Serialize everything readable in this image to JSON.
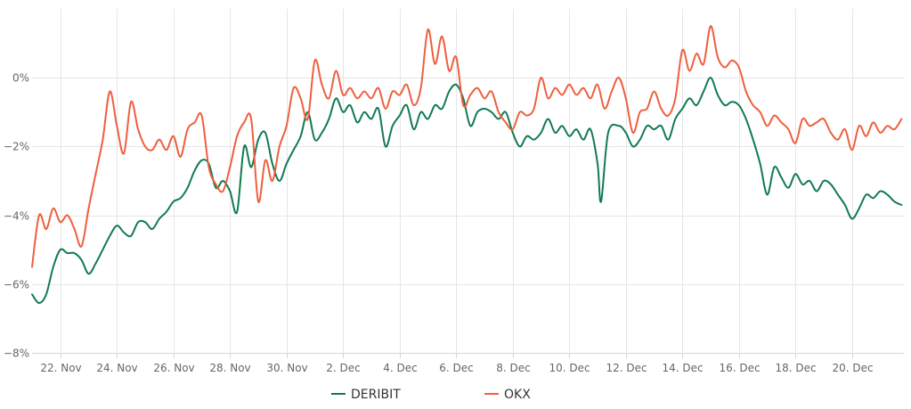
{
  "chart_data": {
    "type": "line",
    "title": "",
    "xlabel": "",
    "ylabel": "",
    "x_range": [
      "2024-11-21T00:00",
      "2024-12-21T20:00"
    ],
    "y_range": [
      -8,
      2
    ],
    "y_ticks": [
      -8,
      -6,
      -4,
      -2,
      0
    ],
    "y_tick_labels": [
      "−8%",
      "−6%",
      "−4%",
      "−2%",
      "0%"
    ],
    "x_ticks": [
      "2024-11-22",
      "2024-11-24",
      "2024-11-26",
      "2024-11-28",
      "2024-11-30",
      "2024-12-02",
      "2024-12-04",
      "2024-12-06",
      "2024-12-08",
      "2024-12-10",
      "2024-12-12",
      "2024-12-14",
      "2024-12-16",
      "2024-12-18",
      "2024-12-20"
    ],
    "x_tick_labels": [
      "22. Nov",
      "24. Nov",
      "26. Nov",
      "28. Nov",
      "30. Nov",
      "2. Dec",
      "4. Dec",
      "6. Dec",
      "8. Dec",
      "10. Dec",
      "12. Dec",
      "14. Dec",
      "16. Dec",
      "18. Dec",
      "20. Dec"
    ],
    "grid": true,
    "legend_position": "bottom-center",
    "series": [
      {
        "name": "DERIBIT",
        "color": "#117a52",
        "points": [
          [
            "2024-11-21T00:00",
            -6.3
          ],
          [
            "2024-11-21T06:00",
            -6.55
          ],
          [
            "2024-11-21T12:00",
            -6.3
          ],
          [
            "2024-11-21T18:00",
            -5.5
          ],
          [
            "2024-11-22T00:00",
            -5.0
          ],
          [
            "2024-11-22T06:00",
            -5.1
          ],
          [
            "2024-11-22T12:00",
            -5.1
          ],
          [
            "2024-11-22T18:00",
            -5.3
          ],
          [
            "2024-11-23T00:00",
            -5.7
          ],
          [
            "2024-11-23T06:00",
            -5.4
          ],
          [
            "2024-11-23T12:00",
            -5.0
          ],
          [
            "2024-11-23T18:00",
            -4.6
          ],
          [
            "2024-11-24T00:00",
            -4.3
          ],
          [
            "2024-11-24T06:00",
            -4.5
          ],
          [
            "2024-11-24T12:00",
            -4.6
          ],
          [
            "2024-11-24T18:00",
            -4.2
          ],
          [
            "2024-11-25T00:00",
            -4.2
          ],
          [
            "2024-11-25T06:00",
            -4.4
          ],
          [
            "2024-11-25T12:00",
            -4.1
          ],
          [
            "2024-11-25T18:00",
            -3.9
          ],
          [
            "2024-11-26T00:00",
            -3.6
          ],
          [
            "2024-11-26T06:00",
            -3.5
          ],
          [
            "2024-11-26T12:00",
            -3.2
          ],
          [
            "2024-11-26T18:00",
            -2.7
          ],
          [
            "2024-11-27T00:00",
            -2.4
          ],
          [
            "2024-11-27T06:00",
            -2.5
          ],
          [
            "2024-11-27T12:00",
            -3.2
          ],
          [
            "2024-11-27T18:00",
            -3.0
          ],
          [
            "2024-11-28T00:00",
            -3.3
          ],
          [
            "2024-11-28T06:00",
            -3.9
          ],
          [
            "2024-11-28T12:00",
            -2.0
          ],
          [
            "2024-11-28T18:00",
            -2.6
          ],
          [
            "2024-11-29T00:00",
            -1.8
          ],
          [
            "2024-11-29T06:00",
            -1.6
          ],
          [
            "2024-11-29T12:00",
            -2.5
          ],
          [
            "2024-11-29T18:00",
            -3.0
          ],
          [
            "2024-11-30T00:00",
            -2.5
          ],
          [
            "2024-11-30T06:00",
            -2.1
          ],
          [
            "2024-11-30T12:00",
            -1.7
          ],
          [
            "2024-11-30T18:00",
            -1.0
          ],
          [
            "2024-12-01T00:00",
            -1.8
          ],
          [
            "2024-12-01T06:00",
            -1.6
          ],
          [
            "2024-12-01T12:00",
            -1.2
          ],
          [
            "2024-12-01T18:00",
            -0.6
          ],
          [
            "2024-12-02T00:00",
            -1.0
          ],
          [
            "2024-12-02T06:00",
            -0.8
          ],
          [
            "2024-12-02T12:00",
            -1.3
          ],
          [
            "2024-12-02T18:00",
            -1.0
          ],
          [
            "2024-12-03T00:00",
            -1.2
          ],
          [
            "2024-12-03T06:00",
            -0.9
          ],
          [
            "2024-12-03T12:00",
            -2.0
          ],
          [
            "2024-12-03T18:00",
            -1.4
          ],
          [
            "2024-12-04T00:00",
            -1.1
          ],
          [
            "2024-12-04T06:00",
            -0.8
          ],
          [
            "2024-12-04T12:00",
            -1.5
          ],
          [
            "2024-12-04T18:00",
            -1.0
          ],
          [
            "2024-12-05T00:00",
            -1.2
          ],
          [
            "2024-12-05T06:00",
            -0.8
          ],
          [
            "2024-12-05T12:00",
            -0.9
          ],
          [
            "2024-12-05T18:00",
            -0.4
          ],
          [
            "2024-12-06T00:00",
            -0.2
          ],
          [
            "2024-12-06T06:00",
            -0.6
          ],
          [
            "2024-12-06T12:00",
            -1.4
          ],
          [
            "2024-12-06T18:00",
            -1.0
          ],
          [
            "2024-12-07T00:00",
            -0.9
          ],
          [
            "2024-12-07T06:00",
            -1.0
          ],
          [
            "2024-12-07T12:00",
            -1.2
          ],
          [
            "2024-12-07T18:00",
            -1.0
          ],
          [
            "2024-12-08T00:00",
            -1.6
          ],
          [
            "2024-12-08T06:00",
            -2.0
          ],
          [
            "2024-12-08T12:00",
            -1.7
          ],
          [
            "2024-12-08T18:00",
            -1.8
          ],
          [
            "2024-12-09T00:00",
            -1.6
          ],
          [
            "2024-12-09T06:00",
            -1.2
          ],
          [
            "2024-12-09T12:00",
            -1.6
          ],
          [
            "2024-12-09T18:00",
            -1.4
          ],
          [
            "2024-12-10T00:00",
            -1.7
          ],
          [
            "2024-12-10T06:00",
            -1.5
          ],
          [
            "2024-12-10T12:00",
            -1.8
          ],
          [
            "2024-12-10T18:00",
            -1.5
          ],
          [
            "2024-12-11T00:00",
            -2.5
          ],
          [
            "2024-12-11T03:00",
            -3.6
          ],
          [
            "2024-12-11T09:00",
            -1.6
          ],
          [
            "2024-12-11T18:00",
            -1.4
          ],
          [
            "2024-12-12T00:00",
            -1.6
          ],
          [
            "2024-12-12T06:00",
            -2.0
          ],
          [
            "2024-12-12T12:00",
            -1.8
          ],
          [
            "2024-12-12T18:00",
            -1.4
          ],
          [
            "2024-12-13T00:00",
            -1.5
          ],
          [
            "2024-12-13T06:00",
            -1.4
          ],
          [
            "2024-12-13T12:00",
            -1.8
          ],
          [
            "2024-12-13T18:00",
            -1.2
          ],
          [
            "2024-12-14T00:00",
            -0.9
          ],
          [
            "2024-12-14T06:00",
            -0.6
          ],
          [
            "2024-12-14T12:00",
            -0.8
          ],
          [
            "2024-12-14T18:00",
            -0.4
          ],
          [
            "2024-12-15T00:00",
            0.0
          ],
          [
            "2024-12-15T06:00",
            -0.5
          ],
          [
            "2024-12-15T12:00",
            -0.8
          ],
          [
            "2024-12-15T18:00",
            -0.7
          ],
          [
            "2024-12-16T00:00",
            -0.8
          ],
          [
            "2024-12-16T06:00",
            -1.2
          ],
          [
            "2024-12-16T12:00",
            -1.8
          ],
          [
            "2024-12-16T18:00",
            -2.5
          ],
          [
            "2024-12-17T00:00",
            -3.4
          ],
          [
            "2024-12-17T06:00",
            -2.6
          ],
          [
            "2024-12-17T12:00",
            -2.9
          ],
          [
            "2024-12-17T18:00",
            -3.2
          ],
          [
            "2024-12-18T00:00",
            -2.8
          ],
          [
            "2024-12-18T06:00",
            -3.1
          ],
          [
            "2024-12-18T12:00",
            -3.0
          ],
          [
            "2024-12-18T18:00",
            -3.3
          ],
          [
            "2024-12-19T00:00",
            -3.0
          ],
          [
            "2024-12-19T06:00",
            -3.1
          ],
          [
            "2024-12-19T12:00",
            -3.4
          ],
          [
            "2024-12-19T18:00",
            -3.7
          ],
          [
            "2024-12-20T00:00",
            -4.1
          ],
          [
            "2024-12-20T06:00",
            -3.8
          ],
          [
            "2024-12-20T12:00",
            -3.4
          ],
          [
            "2024-12-20T18:00",
            -3.5
          ],
          [
            "2024-12-21T00:00",
            -3.3
          ],
          [
            "2024-12-21T06:00",
            -3.4
          ],
          [
            "2024-12-21T12:00",
            -3.6
          ],
          [
            "2024-12-21T18:00",
            -3.7
          ]
        ]
      },
      {
        "name": "OKX",
        "color": "#ee5f3f",
        "points": [
          [
            "2024-11-21T00:00",
            -5.5
          ],
          [
            "2024-11-21T06:00",
            -4.0
          ],
          [
            "2024-11-21T12:00",
            -4.4
          ],
          [
            "2024-11-21T18:00",
            -3.8
          ],
          [
            "2024-11-22T00:00",
            -4.2
          ],
          [
            "2024-11-22T06:00",
            -4.0
          ],
          [
            "2024-11-22T12:00",
            -4.4
          ],
          [
            "2024-11-22T18:00",
            -4.9
          ],
          [
            "2024-11-23T00:00",
            -3.8
          ],
          [
            "2024-11-23T06:00",
            -2.8
          ],
          [
            "2024-11-23T12:00",
            -1.8
          ],
          [
            "2024-11-23T18:00",
            -0.4
          ],
          [
            "2024-11-24T00:00",
            -1.4
          ],
          [
            "2024-11-24T06:00",
            -2.2
          ],
          [
            "2024-11-24T12:00",
            -0.7
          ],
          [
            "2024-11-24T18:00",
            -1.5
          ],
          [
            "2024-11-25T00:00",
            -2.0
          ],
          [
            "2024-11-25T06:00",
            -2.1
          ],
          [
            "2024-11-25T12:00",
            -1.8
          ],
          [
            "2024-11-25T18:00",
            -2.1
          ],
          [
            "2024-11-26T00:00",
            -1.7
          ],
          [
            "2024-11-26T06:00",
            -2.3
          ],
          [
            "2024-11-26T12:00",
            -1.5
          ],
          [
            "2024-11-26T18:00",
            -1.3
          ],
          [
            "2024-11-27T00:00",
            -1.1
          ],
          [
            "2024-11-27T06:00",
            -2.6
          ],
          [
            "2024-11-27T12:00",
            -3.1
          ],
          [
            "2024-11-27T18:00",
            -3.3
          ],
          [
            "2024-11-28T00:00",
            -2.6
          ],
          [
            "2024-11-28T06:00",
            -1.7
          ],
          [
            "2024-11-28T12:00",
            -1.3
          ],
          [
            "2024-11-28T18:00",
            -1.2
          ],
          [
            "2024-11-29T00:00",
            -3.6
          ],
          [
            "2024-11-29T06:00",
            -2.4
          ],
          [
            "2024-11-29T12:00",
            -3.0
          ],
          [
            "2024-11-29T18:00",
            -2.0
          ],
          [
            "2024-11-30T00:00",
            -1.4
          ],
          [
            "2024-11-30T06:00",
            -0.3
          ],
          [
            "2024-11-30T12:00",
            -0.6
          ],
          [
            "2024-11-30T18:00",
            -1.2
          ],
          [
            "2024-12-01T00:00",
            0.5
          ],
          [
            "2024-12-01T06:00",
            -0.2
          ],
          [
            "2024-12-01T12:00",
            -0.6
          ],
          [
            "2024-12-01T18:00",
            0.2
          ],
          [
            "2024-12-02T00:00",
            -0.5
          ],
          [
            "2024-12-02T06:00",
            -0.3
          ],
          [
            "2024-12-02T12:00",
            -0.6
          ],
          [
            "2024-12-02T18:00",
            -0.4
          ],
          [
            "2024-12-03T00:00",
            -0.6
          ],
          [
            "2024-12-03T06:00",
            -0.3
          ],
          [
            "2024-12-03T12:00",
            -0.9
          ],
          [
            "2024-12-03T18:00",
            -0.4
          ],
          [
            "2024-12-04T00:00",
            -0.5
          ],
          [
            "2024-12-04T06:00",
            -0.2
          ],
          [
            "2024-12-04T12:00",
            -0.8
          ],
          [
            "2024-12-04T18:00",
            -0.3
          ],
          [
            "2024-12-05T00:00",
            1.4
          ],
          [
            "2024-12-05T06:00",
            0.4
          ],
          [
            "2024-12-05T12:00",
            1.2
          ],
          [
            "2024-12-05T18:00",
            0.2
          ],
          [
            "2024-12-06T00:00",
            0.6
          ],
          [
            "2024-12-06T06:00",
            -0.8
          ],
          [
            "2024-12-06T12:00",
            -0.5
          ],
          [
            "2024-12-06T18:00",
            -0.3
          ],
          [
            "2024-12-07T00:00",
            -0.6
          ],
          [
            "2024-12-07T06:00",
            -0.4
          ],
          [
            "2024-12-07T12:00",
            -1.0
          ],
          [
            "2024-12-07T18:00",
            -1.3
          ],
          [
            "2024-12-08T00:00",
            -1.5
          ],
          [
            "2024-12-08T06:00",
            -1.0
          ],
          [
            "2024-12-08T12:00",
            -1.1
          ],
          [
            "2024-12-08T18:00",
            -0.9
          ],
          [
            "2024-12-09T00:00",
            0.0
          ],
          [
            "2024-12-09T06:00",
            -0.6
          ],
          [
            "2024-12-09T12:00",
            -0.3
          ],
          [
            "2024-12-09T18:00",
            -0.5
          ],
          [
            "2024-12-10T00:00",
            -0.2
          ],
          [
            "2024-12-10T06:00",
            -0.5
          ],
          [
            "2024-12-10T12:00",
            -0.3
          ],
          [
            "2024-12-10T18:00",
            -0.6
          ],
          [
            "2024-12-11T00:00",
            -0.2
          ],
          [
            "2024-12-11T06:00",
            -0.9
          ],
          [
            "2024-12-11T12:00",
            -0.4
          ],
          [
            "2024-12-11T18:00",
            0.0
          ],
          [
            "2024-12-12T00:00",
            -0.6
          ],
          [
            "2024-12-12T06:00",
            -1.6
          ],
          [
            "2024-12-12T12:00",
            -1.0
          ],
          [
            "2024-12-12T18:00",
            -0.9
          ],
          [
            "2024-12-13T00:00",
            -0.4
          ],
          [
            "2024-12-13T06:00",
            -0.9
          ],
          [
            "2024-12-13T12:00",
            -1.1
          ],
          [
            "2024-12-13T18:00",
            -0.6
          ],
          [
            "2024-12-14T00:00",
            0.8
          ],
          [
            "2024-12-14T06:00",
            0.2
          ],
          [
            "2024-12-14T12:00",
            0.7
          ],
          [
            "2024-12-14T18:00",
            0.4
          ],
          [
            "2024-12-15T00:00",
            1.5
          ],
          [
            "2024-12-15T06:00",
            0.6
          ],
          [
            "2024-12-15T12:00",
            0.3
          ],
          [
            "2024-12-15T18:00",
            0.5
          ],
          [
            "2024-12-16T00:00",
            0.3
          ],
          [
            "2024-12-16T06:00",
            -0.4
          ],
          [
            "2024-12-16T12:00",
            -0.8
          ],
          [
            "2024-12-16T18:00",
            -1.0
          ],
          [
            "2024-12-17T00:00",
            -1.4
          ],
          [
            "2024-12-17T06:00",
            -1.1
          ],
          [
            "2024-12-17T12:00",
            -1.3
          ],
          [
            "2024-12-17T18:00",
            -1.5
          ],
          [
            "2024-12-18T00:00",
            -1.9
          ],
          [
            "2024-12-18T06:00",
            -1.2
          ],
          [
            "2024-12-18T12:00",
            -1.4
          ],
          [
            "2024-12-18T18:00",
            -1.3
          ],
          [
            "2024-12-19T00:00",
            -1.2
          ],
          [
            "2024-12-19T06:00",
            -1.6
          ],
          [
            "2024-12-19T12:00",
            -1.8
          ],
          [
            "2024-12-19T18:00",
            -1.5
          ],
          [
            "2024-12-20T00:00",
            -2.1
          ],
          [
            "2024-12-20T06:00",
            -1.4
          ],
          [
            "2024-12-20T12:00",
            -1.7
          ],
          [
            "2024-12-20T18:00",
            -1.3
          ],
          [
            "2024-12-21T00:00",
            -1.6
          ],
          [
            "2024-12-21T06:00",
            -1.4
          ],
          [
            "2024-12-21T12:00",
            -1.5
          ],
          [
            "2024-12-21T18:00",
            -1.2
          ]
        ]
      }
    ]
  }
}
